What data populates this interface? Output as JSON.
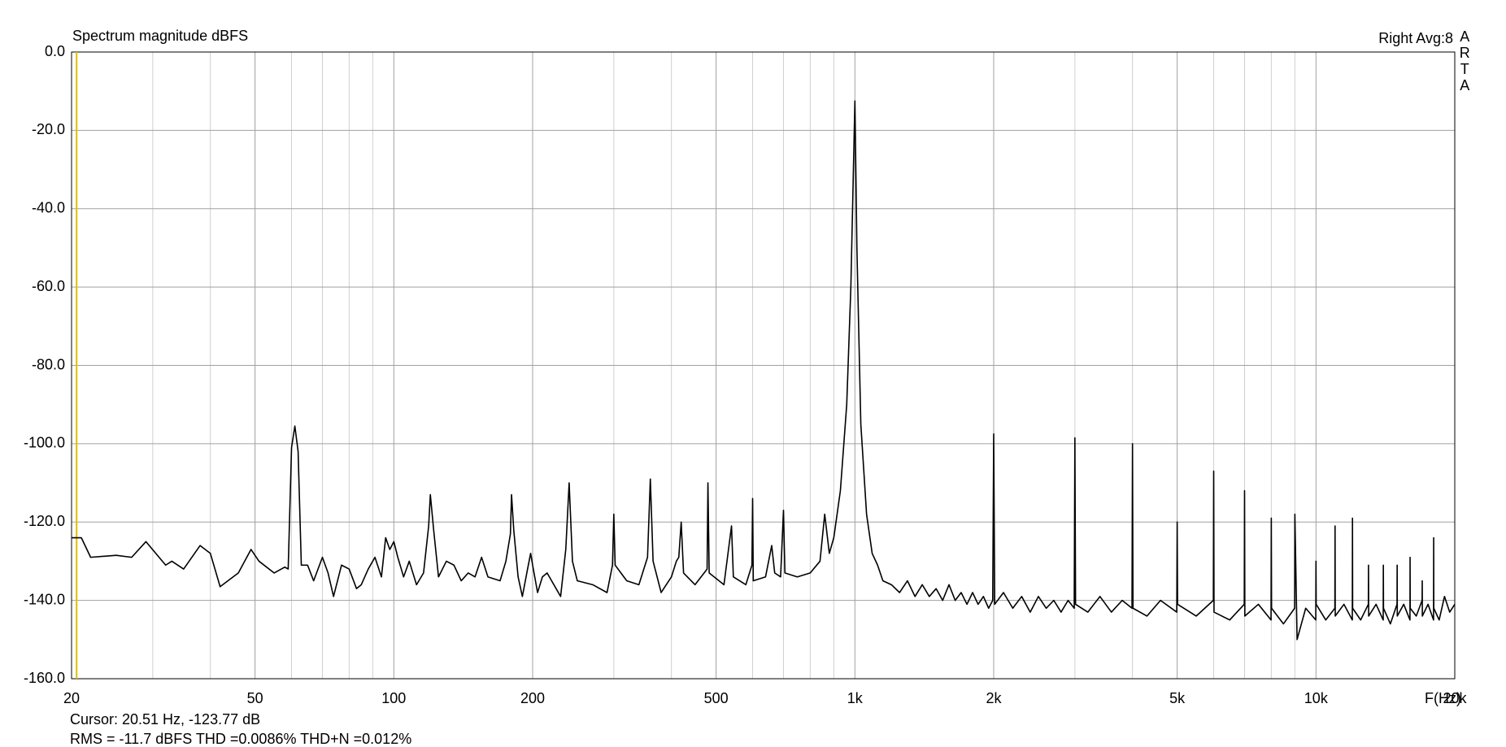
{
  "chart_data": {
    "type": "line",
    "title": "Spectrum magnitude dBFS",
    "header_right": "Right  Avg:8",
    "side_label": "ARTA",
    "xlabel": "F(Hz)",
    "cursor": {
      "label": "Cursor: 20.51 Hz, -123.77 dB",
      "x": 20.51,
      "color": "#e0c000"
    },
    "footer": {
      "text": "RMS =  -11.7 dBFS  THD =0.0086%  THD+N =0.012%",
      "color": "#a01010"
    },
    "xscale": "log",
    "grid": true,
    "xlim": [
      20,
      20000
    ],
    "ylim": [
      -160,
      0
    ],
    "xticks": [
      20,
      50,
      100,
      200,
      500,
      {
        "value": 1000,
        "label": "1k"
      },
      {
        "value": 2000,
        "label": "2k"
      },
      {
        "value": 5000,
        "label": "5k"
      },
      {
        "value": 10000,
        "label": "10k"
      },
      {
        "value": 20000,
        "label": "20k"
      }
    ],
    "xticks_minor": [
      30,
      40,
      60,
      70,
      80,
      90,
      300,
      400,
      600,
      700,
      800,
      900,
      3000,
      4000,
      6000,
      7000,
      8000,
      9000
    ],
    "yticks": [
      {
        "value": -160,
        "label": "-160.0"
      },
      {
        "value": -140,
        "label": "-140.0"
      },
      {
        "value": -120,
        "label": "-120.0"
      },
      {
        "value": -100,
        "label": "-100.0"
      },
      {
        "value": -80,
        "label": "-80.0"
      },
      {
        "value": -60,
        "label": "-60.0"
      },
      {
        "value": -40,
        "label": "-40.0"
      },
      {
        "value": -20,
        "label": "-20.0"
      },
      {
        "value": 0,
        "label": "0.0"
      }
    ],
    "x": [
      20,
      21,
      22,
      25,
      27,
      29,
      32,
      33,
      35,
      38,
      40,
      42,
      46,
      49,
      51,
      55,
      58,
      59,
      60,
      61,
      62,
      63,
      65,
      67,
      70,
      72,
      74,
      77,
      80,
      83,
      85,
      88,
      91,
      94,
      96,
      98,
      100,
      102,
      105,
      108,
      112,
      116,
      119,
      120,
      122,
      125,
      130,
      135,
      140,
      145,
      150,
      155,
      160,
      170,
      175,
      179,
      180,
      182,
      186,
      190,
      195,
      198,
      200,
      205,
      210,
      215,
      230,
      236,
      240,
      244,
      250,
      270,
      290,
      298,
      300,
      302,
      320,
      340,
      355,
      360,
      365,
      380,
      400,
      410,
      415,
      420,
      425,
      450,
      478,
      480,
      483,
      520,
      540,
      545,
      580,
      598,
      600,
      602,
      640,
      660,
      670,
      690,
      700,
      705,
      750,
      800,
      840,
      860,
      880,
      900,
      930,
      960,
      980,
      1000,
      1010,
      1030,
      1060,
      1090,
      1120,
      1150,
      1200,
      1250,
      1300,
      1350,
      1400,
      1450,
      1500,
      1550,
      1600,
      1650,
      1700,
      1750,
      1800,
      1850,
      1900,
      1950,
      1990,
      2000,
      2010,
      2100,
      2200,
      2300,
      2400,
      2500,
      2600,
      2700,
      2800,
      2900,
      2990,
      3000,
      3010,
      3200,
      3400,
      3600,
      3800,
      3990,
      4000,
      4010,
      4300,
      4600,
      4990,
      5000,
      5010,
      5500,
      5990,
      6000,
      6010,
      6500,
      6990,
      7000,
      7010,
      7500,
      7990,
      8000,
      8010,
      8500,
      8990,
      9000,
      9100,
      9500,
      9990,
      10000,
      10010,
      10500,
      10990,
      11000,
      11010,
      11500,
      11990,
      12000,
      12010,
      12500,
      12990,
      13000,
      13010,
      13500,
      13990,
      14000,
      14010,
      14500,
      14990,
      15000,
      15010,
      15500,
      15990,
      16000,
      16010,
      16500,
      16990,
      17000,
      17010,
      17500,
      17990,
      18000,
      18010,
      18500,
      19000,
      19500,
      20000
    ],
    "series": [
      {
        "color": "#000000",
        "values": [
          -124,
          -124,
          -129,
          -128.5,
          -129,
          -125,
          -131,
          -130,
          -132,
          -126,
          -128,
          -136.5,
          -133,
          -127,
          -130,
          -133,
          -131.5,
          -132,
          -101,
          -95.5,
          -102,
          -131,
          -131,
          -135,
          -129,
          -133,
          -139,
          -131,
          -132,
          -137,
          -136,
          -132,
          -129,
          -134,
          -124,
          -127,
          -125,
          -129,
          -134,
          -130,
          -136,
          -133,
          -121,
          -113,
          -122,
          -134,
          -130,
          -131,
          -135,
          -133,
          -134,
          -129,
          -134,
          -135,
          -130,
          -123,
          -113,
          -122,
          -134,
          -139,
          -132,
          -128,
          -131,
          -138,
          -134,
          -133,
          -139,
          -127,
          -110,
          -130,
          -135,
          -136,
          -138,
          -131,
          -118,
          -131,
          -135,
          -136,
          -129,
          -109,
          -130,
          -138,
          -134,
          -130,
          -129,
          -120,
          -133,
          -136,
          -132,
          -110,
          -133,
          -136,
          -121,
          -134,
          -136,
          -131,
          -114,
          -135,
          -134,
          -126,
          -133,
          -134,
          -117,
          -133,
          -134,
          -133,
          -130,
          -118,
          -128,
          -124,
          -112,
          -90,
          -60,
          -12.5,
          -50,
          -95,
          -118,
          -128,
          -131,
          -135,
          -136,
          -138,
          -135,
          -139,
          -136,
          -139,
          -137,
          -140,
          -136,
          -140,
          -138,
          -141,
          -138,
          -141,
          -139,
          -142,
          -140,
          -97.5,
          -141,
          -138,
          -142,
          -139,
          -143,
          -139,
          -142,
          -140,
          -143,
          -140,
          -142,
          -98.5,
          -141,
          -143,
          -139,
          -143,
          -140,
          -142,
          -100,
          -142,
          -144,
          -140,
          -143,
          -120,
          -141,
          -144,
          -140,
          -107,
          -143,
          -145,
          -141,
          -112,
          -144,
          -141,
          -145,
          -119,
          -142,
          -146,
          -142,
          -118,
          -150,
          -142,
          -145,
          -130,
          -141,
          -145,
          -142,
          -121,
          -144,
          -141,
          -145,
          -119,
          -142,
          -145,
          -141,
          -131,
          -144,
          -141,
          -145,
          -131,
          -142,
          -146,
          -141,
          -131,
          -144,
          -141,
          -145,
          -129,
          -142,
          -144,
          -140,
          -135,
          -144,
          -141,
          -145,
          -124,
          -142,
          -145,
          -139,
          -143,
          -141
        ]
      }
    ]
  }
}
